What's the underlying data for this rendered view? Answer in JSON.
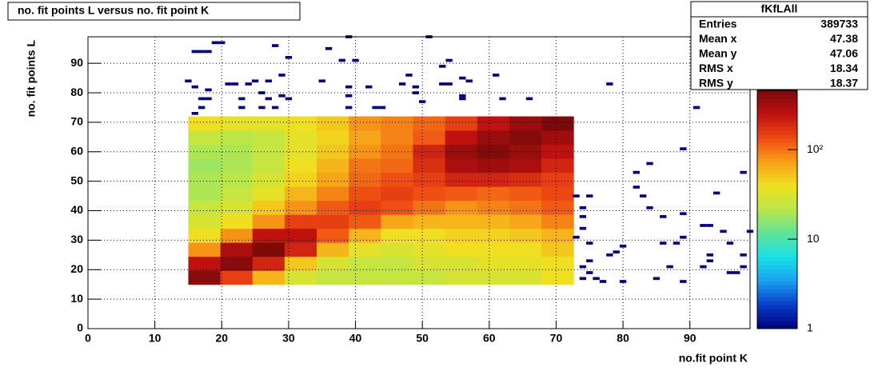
{
  "chart_data": {
    "type": "heatmap",
    "title": "no. fit points L versus no. fit point K",
    "x_label": "no.fit point K",
    "y_label": "no. fit points  L",
    "xlim": [
      0,
      99
    ],
    "ylim": [
      0,
      99
    ],
    "xticks": [
      0,
      10,
      20,
      30,
      40,
      50,
      60,
      70,
      80,
      90
    ],
    "yticks": [
      0,
      10,
      20,
      30,
      40,
      50,
      60,
      70,
      80,
      90
    ],
    "grid": true,
    "xbins": [
      15,
      19.8,
      24.6,
      29.4,
      34.2,
      39,
      43.8,
      48.6,
      53.4,
      58.2,
      63,
      67.8,
      72.6
    ],
    "ybins": [
      15,
      19.75,
      24.5,
      29.25,
      34,
      38.75,
      43.5,
      48.25,
      53,
      57.75,
      62.5,
      67.25,
      72
    ],
    "values": [
      [
        400,
        150,
        60,
        30,
        25,
        25,
        25,
        25,
        30,
        30,
        30,
        40
      ],
      [
        250,
        400,
        200,
        50,
        30,
        25,
        25,
        30,
        30,
        35,
        35,
        40
      ],
      [
        80,
        300,
        440,
        200,
        60,
        35,
        30,
        35,
        40,
        40,
        40,
        50
      ],
      [
        40,
        80,
        250,
        250,
        120,
        60,
        40,
        40,
        45,
        45,
        50,
        60
      ],
      [
        30,
        40,
        80,
        150,
        150,
        120,
        70,
        60,
        60,
        60,
        70,
        90
      ],
      [
        25,
        30,
        50,
        80,
        120,
        150,
        130,
        100,
        80,
        90,
        100,
        120
      ],
      [
        20,
        25,
        35,
        60,
        90,
        130,
        150,
        130,
        120,
        110,
        120,
        140
      ],
      [
        20,
        22,
        30,
        45,
        70,
        110,
        130,
        150,
        200,
        200,
        180,
        150
      ],
      [
        18,
        20,
        25,
        40,
        60,
        100,
        110,
        180,
        300,
        330,
        300,
        200
      ],
      [
        20,
        20,
        25,
        35,
        50,
        80,
        100,
        200,
        350,
        420,
        350,
        250
      ],
      [
        25,
        22,
        25,
        35,
        45,
        70,
        90,
        120,
        250,
        350,
        420,
        330
      ],
      [
        40,
        35,
        35,
        40,
        50,
        80,
        90,
        110,
        150,
        250,
        350,
        450
      ]
    ],
    "sparse": {
      "x": [
        17,
        19,
        20,
        16,
        18,
        15,
        16,
        18,
        17,
        18,
        17,
        16,
        21,
        22,
        24,
        23,
        23,
        25,
        26,
        27,
        26,
        27,
        28,
        29,
        29,
        28,
        30,
        30,
        36,
        35,
        38,
        39,
        40,
        39,
        39,
        39,
        42,
        43,
        44,
        47,
        48,
        49,
        49,
        50,
        51,
        53,
        54,
        53,
        54,
        56,
        56,
        56,
        57,
        61,
        62,
        66,
        78,
        73,
        74,
        74,
        75,
        74,
        73,
        75,
        74,
        75,
        75,
        74,
        76,
        77,
        80,
        78,
        79,
        80,
        82,
        82,
        83,
        84,
        84,
        85,
        86,
        86,
        87,
        89,
        88,
        89,
        89,
        89,
        91,
        92,
        93,
        93,
        93,
        92,
        94,
        95,
        96,
        96,
        97,
        98,
        98,
        98,
        99
      ],
      "y": [
        94,
        97,
        97,
        94,
        94,
        84,
        82,
        81,
        78,
        78,
        75,
        73,
        83,
        83,
        83,
        78,
        75,
        84,
        75,
        84,
        80,
        78,
        75,
        79,
        86,
        96,
        92,
        78,
        95,
        84,
        91,
        99,
        91,
        79,
        82,
        75,
        82,
        75,
        75,
        83,
        86,
        82,
        80,
        77,
        99,
        83,
        83,
        89,
        91,
        85,
        79,
        78,
        84,
        86,
        78,
        78,
        83,
        45,
        41,
        38,
        45,
        34,
        31,
        29,
        21,
        23,
        19,
        17,
        17,
        16,
        16,
        25,
        26,
        28,
        53,
        48,
        45,
        56,
        41,
        17,
        38,
        29,
        21,
        39,
        29,
        31,
        16,
        61,
        75,
        35,
        35,
        23,
        25,
        21,
        46,
        33,
        29,
        19,
        19,
        21,
        53,
        25,
        33
      ]
    },
    "zlim": [
      1,
      460
    ],
    "zlog": true,
    "zticks": [
      1,
      10,
      {
        "value": 100,
        "label": "10²"
      }
    ],
    "palette": [
      "#00007a",
      "#0a3cc8",
      "#1a9ff0",
      "#18e0e8",
      "#5ee39a",
      "#b8e64a",
      "#f0e020",
      "#f8a018",
      "#ee4a12",
      "#c01010",
      "#7a0a0a"
    ],
    "stats": {
      "title": "fKfLAll",
      "labels": [
        "Entries",
        "Mean x",
        "Mean y",
        "RMS x",
        "RMS y"
      ],
      "values": [
        "389733",
        "47.38",
        "47.06",
        "18.34",
        "18.37"
      ]
    }
  }
}
